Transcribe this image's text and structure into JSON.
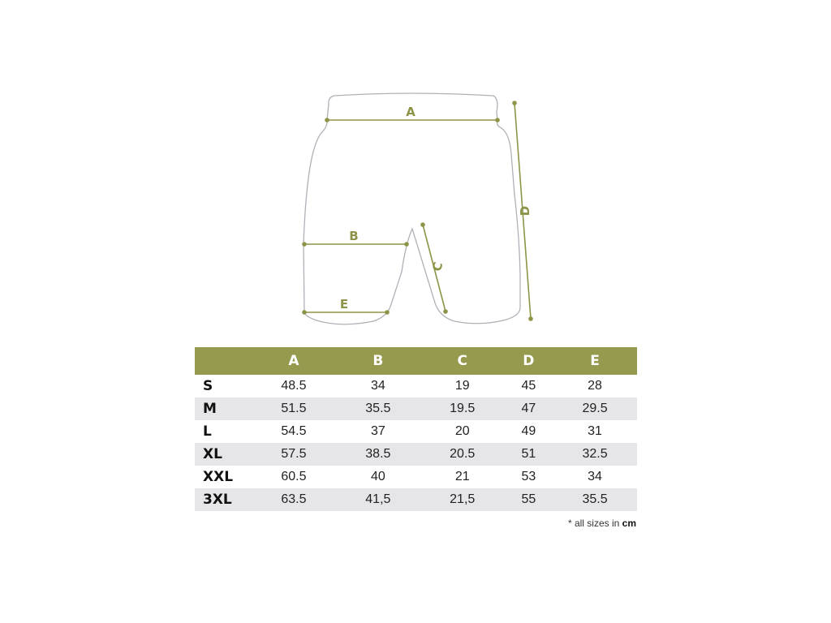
{
  "diagram": {
    "labels": [
      "A",
      "B",
      "C",
      "D",
      "E"
    ],
    "accent_color": "#969a4e",
    "outline_color": "#b0b0b8"
  },
  "table": {
    "headers": [
      "",
      "A",
      "B",
      "C",
      "D",
      "E"
    ],
    "rows": [
      {
        "size": "S",
        "values": [
          "48.5",
          "34",
          "19",
          "45",
          "28"
        ]
      },
      {
        "size": "M",
        "values": [
          "51.5",
          "35.5",
          "19.5",
          "47",
          "29.5"
        ]
      },
      {
        "size": "L",
        "values": [
          "54.5",
          "37",
          "20",
          "49",
          "31"
        ]
      },
      {
        "size": "XL",
        "values": [
          "57.5",
          "38.5",
          "20.5",
          "51",
          "32.5"
        ]
      },
      {
        "size": "XXL",
        "values": [
          "60.5",
          "40",
          "21",
          "53",
          "34"
        ]
      },
      {
        "size": "3XL",
        "values": [
          "63.5",
          "41,5",
          "21,5",
          "55",
          "35.5"
        ]
      }
    ],
    "row_colors": [
      "#ffffff",
      "#e6e6e8"
    ]
  },
  "footnote": {
    "prefix": "* all sizes in",
    "unit": "cm"
  }
}
